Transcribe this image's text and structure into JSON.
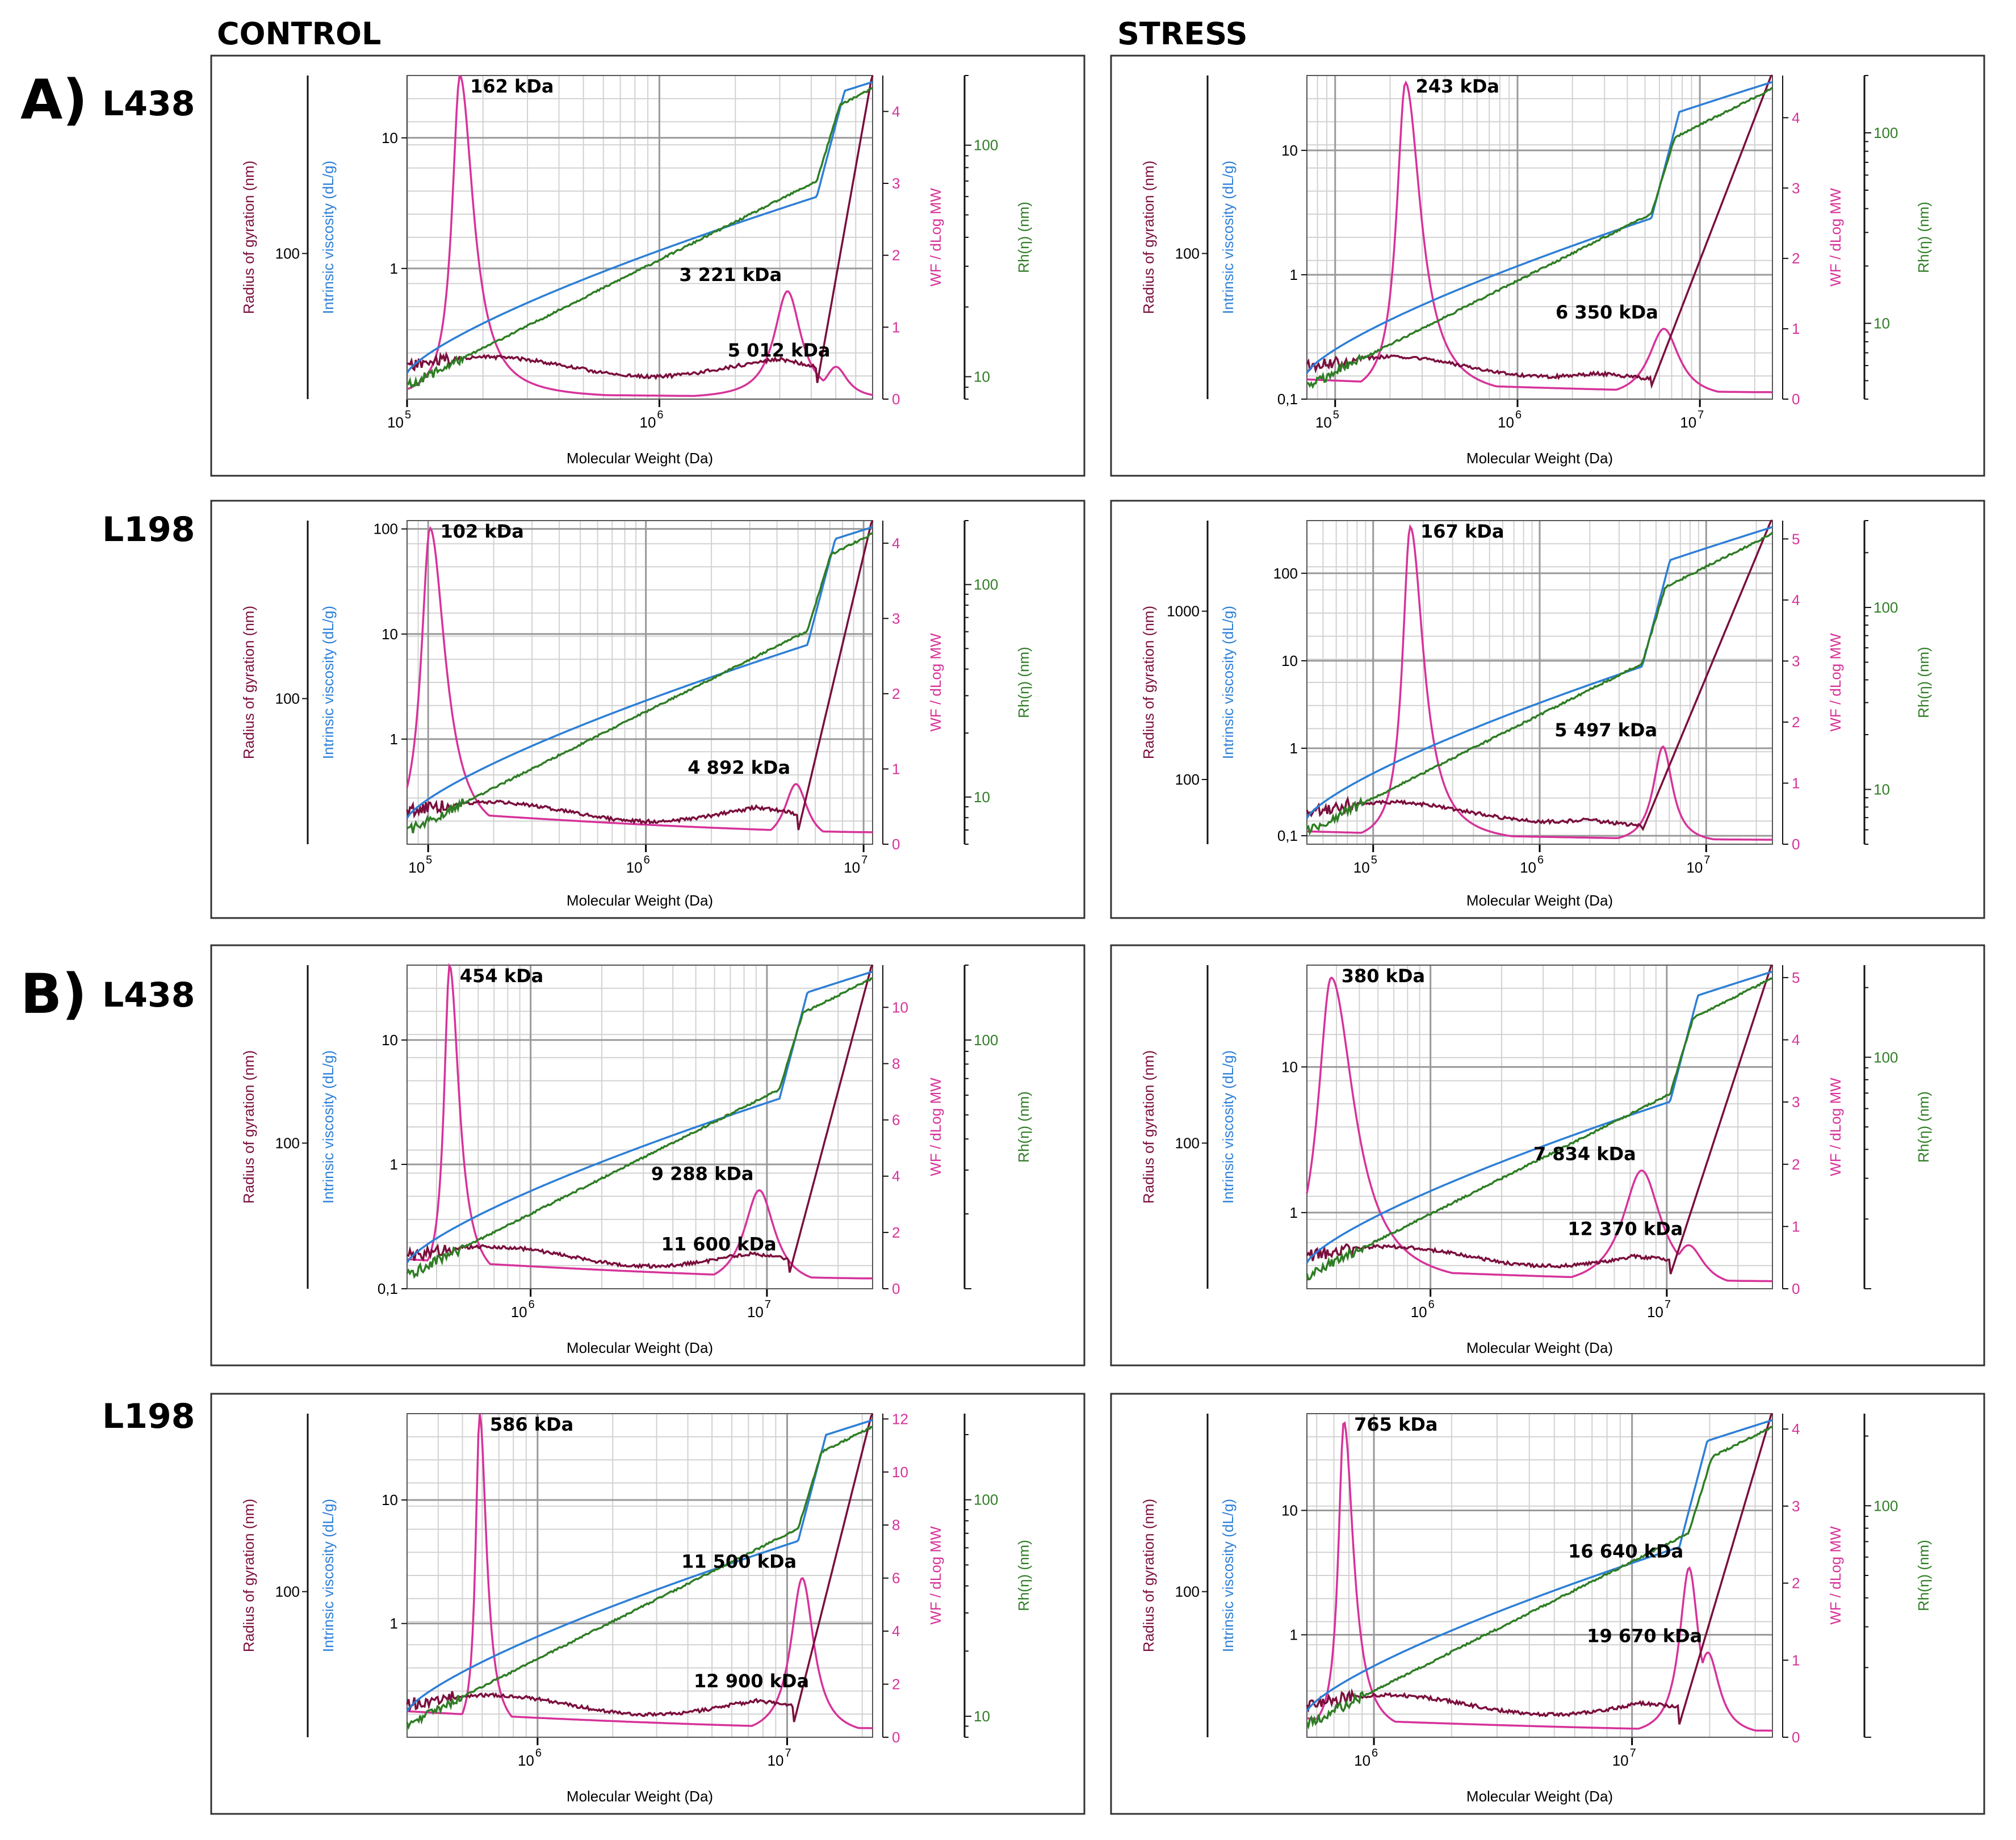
{
  "headers": {
    "control": "CONTROL",
    "stress": "STRESS"
  },
  "sections": [
    {
      "letter": "A)",
      "rows": [
        "L438",
        "L198"
      ]
    },
    {
      "letter": "B)",
      "rows": [
        "L438",
        "L198"
      ]
    }
  ],
  "colors": {
    "rg": "#7a0f3d",
    "iv": "#2d7fd6",
    "wf": "#d6339a",
    "rh": "#2f7d25",
    "grid_major": "#9a9a9a",
    "grid_minor": "#d2d2d2",
    "frame": "#333333"
  },
  "chart_data": [
    {
      "id": "A-L438-control",
      "type": "line",
      "xlabel": "Molecular Weight (Da)",
      "xlim": [
        100000,
        7000000
      ],
      "x_ticks": [
        {
          "v": 100000,
          "label": "10",
          "exp": "5"
        },
        {
          "v": 1000000,
          "label": "10",
          "exp": "6"
        }
      ],
      "axes": {
        "rg": {
          "label": "Radius of gyration (nm)",
          "ticks": [
            "100"
          ]
        },
        "iv": {
          "label": "Intrinsic viscosity (dL/g)",
          "ylim": [
            0.1,
            30
          ],
          "ticks": [
            "10",
            "1"
          ],
          "tick_values": [
            10,
            1
          ]
        },
        "wf": {
          "label": "WF / dLog MW",
          "ylim": [
            0,
            4.5
          ],
          "ticks": [
            "4",
            "3",
            "2",
            "1",
            "0"
          ],
          "tick_values": [
            4,
            3,
            2,
            1,
            0
          ]
        },
        "rh": {
          "label": "Rh(η) (nm)",
          "ylim": [
            8,
            200
          ],
          "ticks": [
            "100",
            "10"
          ],
          "tick_values": [
            100,
            10
          ]
        }
      },
      "peaks": [
        {
          "label": "162 kDa",
          "mw": 162000,
          "height": 4.5,
          "width": 0.035,
          "side": "r"
        },
        {
          "label": "3 221 kDa",
          "mw": 3221000,
          "height": 1.5,
          "width": 0.035,
          "side": "l"
        },
        {
          "label": "5 012 kDa",
          "mw": 5012000,
          "height": 0.45,
          "width": 0.03,
          "side": "l"
        }
      ],
      "baseline": 0.25,
      "dip": 0.9,
      "rise": 0.88,
      "iv_step": 0.88,
      "rh_step": 0.88
    },
    {
      "id": "A-L438-stress",
      "type": "line",
      "xlabel": "Molecular Weight (Da)",
      "xlim": [
        70000,
        25000000
      ],
      "x_ticks": [
        {
          "v": 100000,
          "label": "10",
          "exp": "5"
        },
        {
          "v": 1000000,
          "label": "10",
          "exp": "6"
        },
        {
          "v": 10000000,
          "label": "10",
          "exp": "7"
        }
      ],
      "axes": {
        "rg": {
          "label": "Radius of gyration (nm)",
          "ticks": [
            "100"
          ]
        },
        "iv": {
          "label": "Intrinsic viscosity (dL/g)",
          "ylim": [
            0.1,
            40
          ],
          "ticks": [
            "10",
            "1",
            "0,1"
          ],
          "tick_values": [
            10,
            1,
            0.1
          ]
        },
        "wf": {
          "label": "WF / dLog MW",
          "ylim": [
            0,
            4.6
          ],
          "ticks": [
            "4",
            "3",
            "2",
            "1",
            "0"
          ],
          "tick_values": [
            4,
            3,
            2,
            1,
            0
          ]
        },
        "rh": {
          "label": "Rh(η) (nm)",
          "ylim": [
            4,
            200
          ],
          "ticks": [
            "100",
            "10"
          ],
          "tick_values": [
            100,
            10
          ]
        }
      },
      "peaks": [
        {
          "label": "243 kDa",
          "mw": 243000,
          "height": 4.5,
          "width": 0.04,
          "side": "r"
        },
        {
          "label": "6 350 kDa",
          "mw": 6350000,
          "height": 1.0,
          "width": 0.04,
          "side": "l"
        }
      ],
      "baseline": 0.8,
      "dip": 0.72,
      "rise": 0.74,
      "iv_step": 0.74,
      "rh_step": 0.74
    },
    {
      "id": "A-L198-control",
      "type": "line",
      "xlabel": "Molecular Weight (Da)",
      "xlim": [
        80000,
        11000000
      ],
      "x_ticks": [
        {
          "v": 100000,
          "label": "10",
          "exp": "5"
        },
        {
          "v": 1000000,
          "label": "10",
          "exp": "6"
        },
        {
          "v": 10000000,
          "label": "10",
          "exp": "7"
        }
      ],
      "axes": {
        "rg": {
          "label": "Radius of gyration (nm)",
          "ticks": [
            "100"
          ]
        },
        "iv": {
          "label": "Intrinsic viscosity (dL/g)",
          "ylim": [
            0.1,
            120
          ],
          "ticks": [
            "100",
            "10",
            "1"
          ],
          "tick_values": [
            100,
            10,
            1
          ]
        },
        "wf": {
          "label": "WF / dLog MW",
          "ylim": [
            0,
            4.3
          ],
          "ticks": [
            "4",
            "3",
            "2",
            "1",
            "0"
          ],
          "tick_values": [
            4,
            3,
            2,
            1,
            0
          ]
        },
        "rh": {
          "label": "Rh(η) (nm)",
          "ylim": [
            6,
            200
          ],
          "ticks": [
            "100",
            "10"
          ],
          "tick_values": [
            100,
            10
          ]
        }
      },
      "peaks": [
        {
          "label": "102 kDa",
          "mw": 102000,
          "height": 4.2,
          "width": 0.04,
          "side": "r"
        },
        {
          "label": "4 892 kDa",
          "mw": 4892000,
          "height": 0.8,
          "width": 0.03,
          "side": "l"
        }
      ],
      "baseline": 1.3,
      "dip": 0.85,
      "rise": 0.84,
      "iv_step": 0.86,
      "rh_step": 0.86
    },
    {
      "id": "A-L198-stress",
      "type": "line",
      "xlabel": "Molecular Weight (Da)",
      "xlim": [
        40000,
        25000000
      ],
      "x_ticks": [
        {
          "v": 100000,
          "label": "10",
          "exp": "5"
        },
        {
          "v": 1000000,
          "label": "10",
          "exp": "6"
        },
        {
          "v": 10000000,
          "label": "10",
          "exp": "7"
        }
      ],
      "axes": {
        "rg": {
          "label": "Radius of gyration (nm)",
          "ticks": [
            "1000",
            "100"
          ]
        },
        "iv": {
          "label": "Intrinsic viscosity (dL/g)",
          "ylim": [
            0.08,
            400
          ],
          "ticks": [
            "100",
            "10",
            "1",
            "0,1"
          ],
          "tick_values": [
            100,
            10,
            1,
            0.1
          ]
        },
        "wf": {
          "label": "WF / dLog MW",
          "ylim": [
            0,
            5.3
          ],
          "ticks": [
            "5",
            "4",
            "3",
            "2",
            "1",
            "0"
          ],
          "tick_values": [
            5,
            4,
            3,
            2,
            1,
            0
          ]
        },
        "rh": {
          "label": "Rh(η) (nm)",
          "ylim": [
            5,
            300
          ],
          "ticks": [
            "100",
            "10"
          ],
          "tick_values": [
            100,
            10
          ]
        }
      },
      "peaks": [
        {
          "label": "167 kDa",
          "mw": 167000,
          "height": 5.2,
          "width": 0.035,
          "side": "r"
        },
        {
          "label": "5 497 kDa",
          "mw": 5497000,
          "height": 1.6,
          "width": 0.025,
          "side": "l"
        }
      ],
      "baseline": 0.6,
      "dip": 0.7,
      "rise": 0.72,
      "iv_step": 0.72,
      "rh_step": 0.72
    },
    {
      "id": "B-L438-control",
      "type": "line",
      "xlabel": "Molecular Weight (Da)",
      "xlim": [
        300000,
        28000000
      ],
      "x_ticks": [
        {
          "v": 1000000,
          "label": "10",
          "exp": "6"
        },
        {
          "v": 10000000,
          "label": "10",
          "exp": "7"
        }
      ],
      "axes": {
        "rg": {
          "label": "Radius of gyration (nm)",
          "ticks": [
            "100"
          ]
        },
        "iv": {
          "label": "Intrinsic viscosity (dL/g)",
          "ylim": [
            0.1,
            40
          ],
          "ticks": [
            "10",
            "1",
            "0,1"
          ],
          "tick_values": [
            10,
            1,
            0.1
          ]
        },
        "wf": {
          "label": "WF / dLog MW",
          "ylim": [
            0,
            11.5
          ],
          "ticks": [
            "10",
            "8",
            "6",
            "4",
            "2",
            "0"
          ],
          "tick_values": [
            10,
            8,
            6,
            4,
            2,
            0
          ]
        },
        "rh": {
          "label": "Rh(η) (nm)",
          "ylim": [
            10,
            200
          ],
          "ticks": [
            "100"
          ],
          "tick_values": [
            100
          ]
        }
      },
      "peaks": [
        {
          "label": "454 kDa",
          "mw": 454000,
          "height": 11.5,
          "width": 0.025,
          "side": "r"
        },
        {
          "label": "9 288 kDa",
          "mw": 9288000,
          "height": 3.5,
          "width": 0.04,
          "side": "l"
        },
        {
          "label": "11 600 kDa",
          "mw": 11600000,
          "height": 1.0,
          "width": 0.03,
          "side": "l"
        }
      ],
      "baseline": 3.0,
      "dip": 0.83,
      "rise": 0.82,
      "iv_step": 0.8,
      "rh_step": 0.8
    },
    {
      "id": "B-L438-stress",
      "type": "line",
      "xlabel": "Molecular Weight (Da)",
      "xlim": [
        300000,
        28000000
      ],
      "x_ticks": [
        {
          "v": 1000000,
          "label": "10",
          "exp": "6"
        },
        {
          "v": 10000000,
          "label": "10",
          "exp": "7"
        }
      ],
      "axes": {
        "rg": {
          "label": "Radius of gyration (nm)",
          "ticks": [
            "100"
          ]
        },
        "iv": {
          "label": "Intrinsic viscosity (dL/g)",
          "ylim": [
            0.3,
            50
          ],
          "ticks": [
            "10",
            "1"
          ],
          "tick_values": [
            10,
            1
          ]
        },
        "wf": {
          "label": "WF / dLog MW",
          "ylim": [
            0,
            5.2
          ],
          "ticks": [
            "5",
            "4",
            "3",
            "2",
            "1",
            "0"
          ],
          "tick_values": [
            5,
            4,
            3,
            2,
            1,
            0
          ]
        },
        "rh": {
          "label": "Rh(η) (nm)",
          "ylim": [
            10,
            250
          ],
          "ticks": [
            "100"
          ],
          "tick_values": [
            100
          ]
        }
      },
      "peaks": [
        {
          "label": "380 kDa",
          "mw": 380000,
          "height": 5.0,
          "width": 0.06,
          "side": "r"
        },
        {
          "label": "7 834 kDa",
          "mw": 7834000,
          "height": 1.9,
          "width": 0.05,
          "side": "l"
        },
        {
          "label": "12 370 kDa",
          "mw": 12370000,
          "height": 0.7,
          "width": 0.04,
          "side": "l"
        }
      ],
      "baseline": 1.0,
      "dip": 0.8,
      "rise": 0.78,
      "iv_step": 0.78,
      "rh_step": 0.78
    },
    {
      "id": "B-L198-control",
      "type": "line",
      "xlabel": "Molecular Weight (Da)",
      "xlim": [
        300000,
        22000000
      ],
      "x_ticks": [
        {
          "v": 1000000,
          "label": "10",
          "exp": "6"
        },
        {
          "v": 10000000,
          "label": "10",
          "exp": "7"
        }
      ],
      "axes": {
        "rg": {
          "label": "Radius of gyration (nm)",
          "ticks": [
            "100"
          ]
        },
        "iv": {
          "label": "Intrinsic viscosity (dL/g)",
          "ylim": [
            0.12,
            50
          ],
          "ticks": [
            "10",
            "1"
          ],
          "tick_values": [
            10,
            1
          ]
        },
        "wf": {
          "label": "WF / dLog MW",
          "ylim": [
            0,
            12.2
          ],
          "ticks": [
            "12",
            "10",
            "8",
            "6",
            "4",
            "2",
            "0"
          ],
          "tick_values": [
            12,
            10,
            8,
            6,
            4,
            2,
            0
          ]
        },
        "rh": {
          "label": "Rh(η) (nm)",
          "ylim": [
            8,
            250
          ],
          "ticks": [
            "100",
            "10"
          ],
          "tick_values": [
            100,
            10
          ]
        }
      },
      "peaks": [
        {
          "label": "586 kDa",
          "mw": 586000,
          "height": 12.2,
          "width": 0.018,
          "side": "r"
        },
        {
          "label": "11 500 kDa",
          "mw": 11500000,
          "height": 6.0,
          "width": 0.03,
          "side": "l"
        },
        {
          "label": "12 900 kDa",
          "mw": 12900000,
          "height": 1.5,
          "width": 0.025,
          "side": "l"
        }
      ],
      "baseline": 2.8,
      "dip": 0.85,
      "rise": 0.83,
      "iv_step": 0.84,
      "rh_step": 0.84
    },
    {
      "id": "B-L198-stress",
      "type": "line",
      "xlabel": "Molecular Weight (Da)",
      "xlim": [
        550000,
        35000000
      ],
      "x_ticks": [
        {
          "v": 1000000,
          "label": "10",
          "exp": "6"
        },
        {
          "v": 10000000,
          "label": "10",
          "exp": "7"
        }
      ],
      "axes": {
        "rg": {
          "label": "Radius of gyration (nm)",
          "ticks": [
            "100"
          ]
        },
        "iv": {
          "label": "Intrinsic viscosity (dL/g)",
          "ylim": [
            0.15,
            60
          ],
          "ticks": [
            "10",
            "1"
          ],
          "tick_values": [
            10,
            1
          ]
        },
        "wf": {
          "label": "WF / dLog MW",
          "ylim": [
            0,
            4.2
          ],
          "ticks": [
            "4",
            "3",
            "2",
            "1",
            "0"
          ],
          "tick_values": [
            4,
            3,
            2,
            1,
            0
          ]
        },
        "rh": {
          "label": "Rh(η) (nm)",
          "ylim": [
            10,
            250
          ],
          "ticks": [
            "100"
          ],
          "tick_values": [
            100
          ]
        }
      },
      "peaks": [
        {
          "label": "765 kDa",
          "mw": 765000,
          "height": 4.1,
          "width": 0.025,
          "side": "r"
        },
        {
          "label": "16 640 kDa",
          "mw": 16640000,
          "height": 2.2,
          "width": 0.025,
          "side": "l"
        },
        {
          "label": "19 670 kDa",
          "mw": 19670000,
          "height": 1.1,
          "width": 0.03,
          "side": "l"
        }
      ],
      "baseline": 0.7,
      "dip": 0.82,
      "rise": 0.8,
      "iv_step": 0.8,
      "rh_step": 0.82
    }
  ]
}
